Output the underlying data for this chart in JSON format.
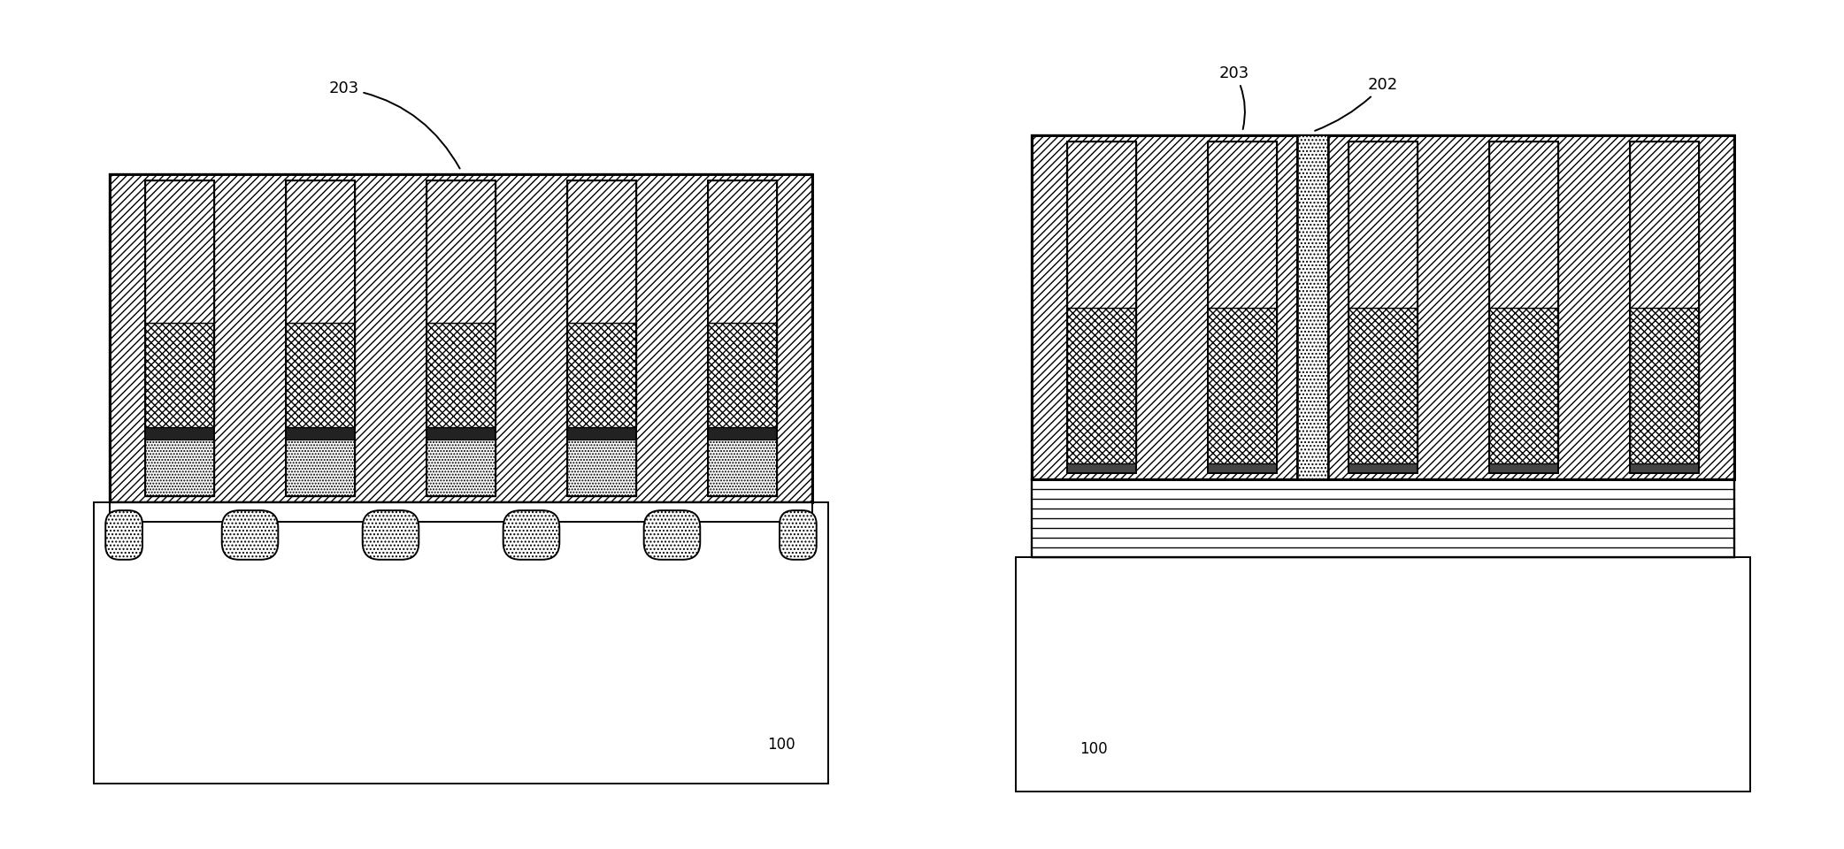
{
  "bg_color": "#ffffff",
  "line_color": "#000000",
  "gray_light": "#d0d0d0",
  "label_100": "100",
  "label_203_1": "203",
  "label_203_2": "203",
  "label_202": "202",
  "fig_width": 20.84,
  "fig_height": 9.6,
  "dpi": 100
}
